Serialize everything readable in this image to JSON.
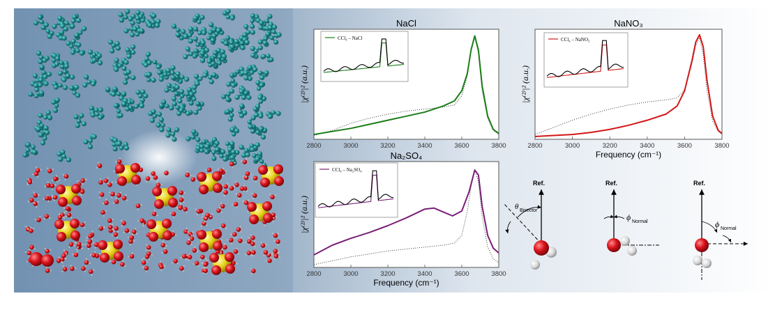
{
  "figure": {
    "background_colors": {
      "left": "#6f8fb0",
      "right": "#ffffff"
    },
    "simulation": {
      "molecules": [
        "CCl4",
        "water",
        "sulfate",
        "sodium"
      ],
      "colors": {
        "ccl4": "#1f8a8c",
        "oxygen": "#d9121b",
        "sulfur": "#e6d21a",
        "hydrogen": "#d8d8d8"
      }
    }
  },
  "panels": {
    "nacl": {
      "title": "NaCl",
      "ylabel": "|χ⁽²⁾|² (a.u.)",
      "xlabel": "",
      "series_color": "#1a7d16",
      "inset_legend": "CCl₄ – NaCl"
    },
    "nano3": {
      "title": "NaNO₃",
      "ylabel": "|χ⁽²⁾|² (a.u.)",
      "xlabel": "Frequency (cm⁻¹)",
      "series_color": "#d21717",
      "inset_legend": "CCl₄ – NaNO₃"
    },
    "na2so4": {
      "title": "Na₂SO₄",
      "ylabel": "|χ⁽²⁾|² (a.u.)",
      "xlabel": "Frequency (cm⁻¹)",
      "series_color": "#7a1e78",
      "inset_legend": "CCl₄ – Na₂SO₄"
    }
  },
  "chart_data": [
    {
      "type": "line",
      "title": "NaCl",
      "xlim": [
        2800,
        3800
      ],
      "ylim": [
        0,
        1
      ],
      "xticks": [
        "2800",
        "3000",
        "3200",
        "3400",
        "3600",
        "3800"
      ],
      "series": [
        {
          "x": [
            2800,
            2900,
            3000,
            3100,
            3200,
            3300,
            3400,
            3500,
            3560,
            3600,
            3630,
            3650,
            3670,
            3690,
            3710,
            3740,
            3770,
            3800
          ],
          "y": [
            0.02,
            0.05,
            0.08,
            0.12,
            0.16,
            0.2,
            0.24,
            0.3,
            0.35,
            0.45,
            0.62,
            0.85,
            0.99,
            0.85,
            0.5,
            0.2,
            0.07,
            0.03
          ]
        },
        {
          "x": [
            2800,
            2900,
            3000,
            3100,
            3200,
            3300,
            3400,
            3500,
            3560,
            3600,
            3630,
            3650,
            3670,
            3690,
            3710,
            3740,
            3770,
            3800
          ],
          "y": [
            0.01,
            0.06,
            0.13,
            0.18,
            0.22,
            0.25,
            0.27,
            0.29,
            0.31,
            0.4,
            0.6,
            0.85,
            0.98,
            0.82,
            0.45,
            0.18,
            0.06,
            0.02
          ]
        }
      ]
    },
    {
      "type": "line",
      "title": "NaNO₃",
      "xlabel": "Frequency (cm⁻¹)",
      "xlim": [
        2800,
        3800
      ],
      "ylim": [
        0,
        1
      ],
      "xticks": [
        "2800",
        "3000",
        "3200",
        "3400",
        "3600",
        "3800"
      ],
      "series": [
        {
          "x": [
            2800,
            2900,
            3000,
            3100,
            3200,
            3300,
            3400,
            3500,
            3560,
            3600,
            3640,
            3660,
            3680,
            3700,
            3720,
            3750,
            3780,
            3800
          ],
          "y": [
            0.0,
            0.01,
            0.02,
            0.04,
            0.07,
            0.11,
            0.16,
            0.22,
            0.3,
            0.45,
            0.75,
            0.93,
            1.0,
            0.88,
            0.55,
            0.2,
            0.06,
            0.03
          ]
        },
        {
          "x": [
            2800,
            2900,
            3000,
            3100,
            3200,
            3300,
            3400,
            3500,
            3560,
            3600,
            3640,
            3660,
            3680,
            3700,
            3720,
            3750,
            3780,
            3800
          ],
          "y": [
            0.02,
            0.09,
            0.16,
            0.22,
            0.27,
            0.31,
            0.34,
            0.36,
            0.38,
            0.46,
            0.72,
            0.9,
            0.97,
            0.8,
            0.45,
            0.15,
            0.05,
            0.02
          ]
        }
      ]
    },
    {
      "type": "line",
      "title": "Na₂SO₄",
      "xlabel": "Frequency (cm⁻¹)",
      "xlim": [
        2800,
        3800
      ],
      "ylim": [
        0,
        1
      ],
      "xticks": [
        "2800",
        "3000",
        "3200",
        "3400",
        "3600",
        "3800"
      ],
      "series": [
        {
          "x": [
            2800,
            2900,
            3000,
            3100,
            3200,
            3300,
            3400,
            3450,
            3500,
            3550,
            3600,
            3640,
            3670,
            3690,
            3710,
            3740,
            3770,
            3800
          ],
          "y": [
            0.1,
            0.2,
            0.27,
            0.33,
            0.4,
            0.48,
            0.57,
            0.58,
            0.54,
            0.5,
            0.55,
            0.75,
            0.97,
            0.92,
            0.6,
            0.3,
            0.17,
            0.12
          ]
        },
        {
          "x": [
            2800,
            2900,
            3000,
            3100,
            3200,
            3300,
            3400,
            3500,
            3560,
            3600,
            3630,
            3650,
            3670,
            3690,
            3710,
            3740,
            3770,
            3800
          ],
          "y": [
            0.0,
            0.04,
            0.08,
            0.11,
            0.14,
            0.16,
            0.18,
            0.2,
            0.22,
            0.3,
            0.55,
            0.8,
            0.98,
            0.85,
            0.5,
            0.18,
            0.06,
            0.02
          ]
        }
      ]
    }
  ],
  "orientation": {
    "ref_label": "Ref.",
    "diagrams": [
      {
        "angle_symbol": "θ",
        "angle_subscript": "Bisector"
      },
      {
        "angle_symbol": "ϕ",
        "angle_subscript": "Normal"
      },
      {
        "angle_symbol": "ϕ",
        "angle_subscript": "Normal"
      }
    ]
  }
}
